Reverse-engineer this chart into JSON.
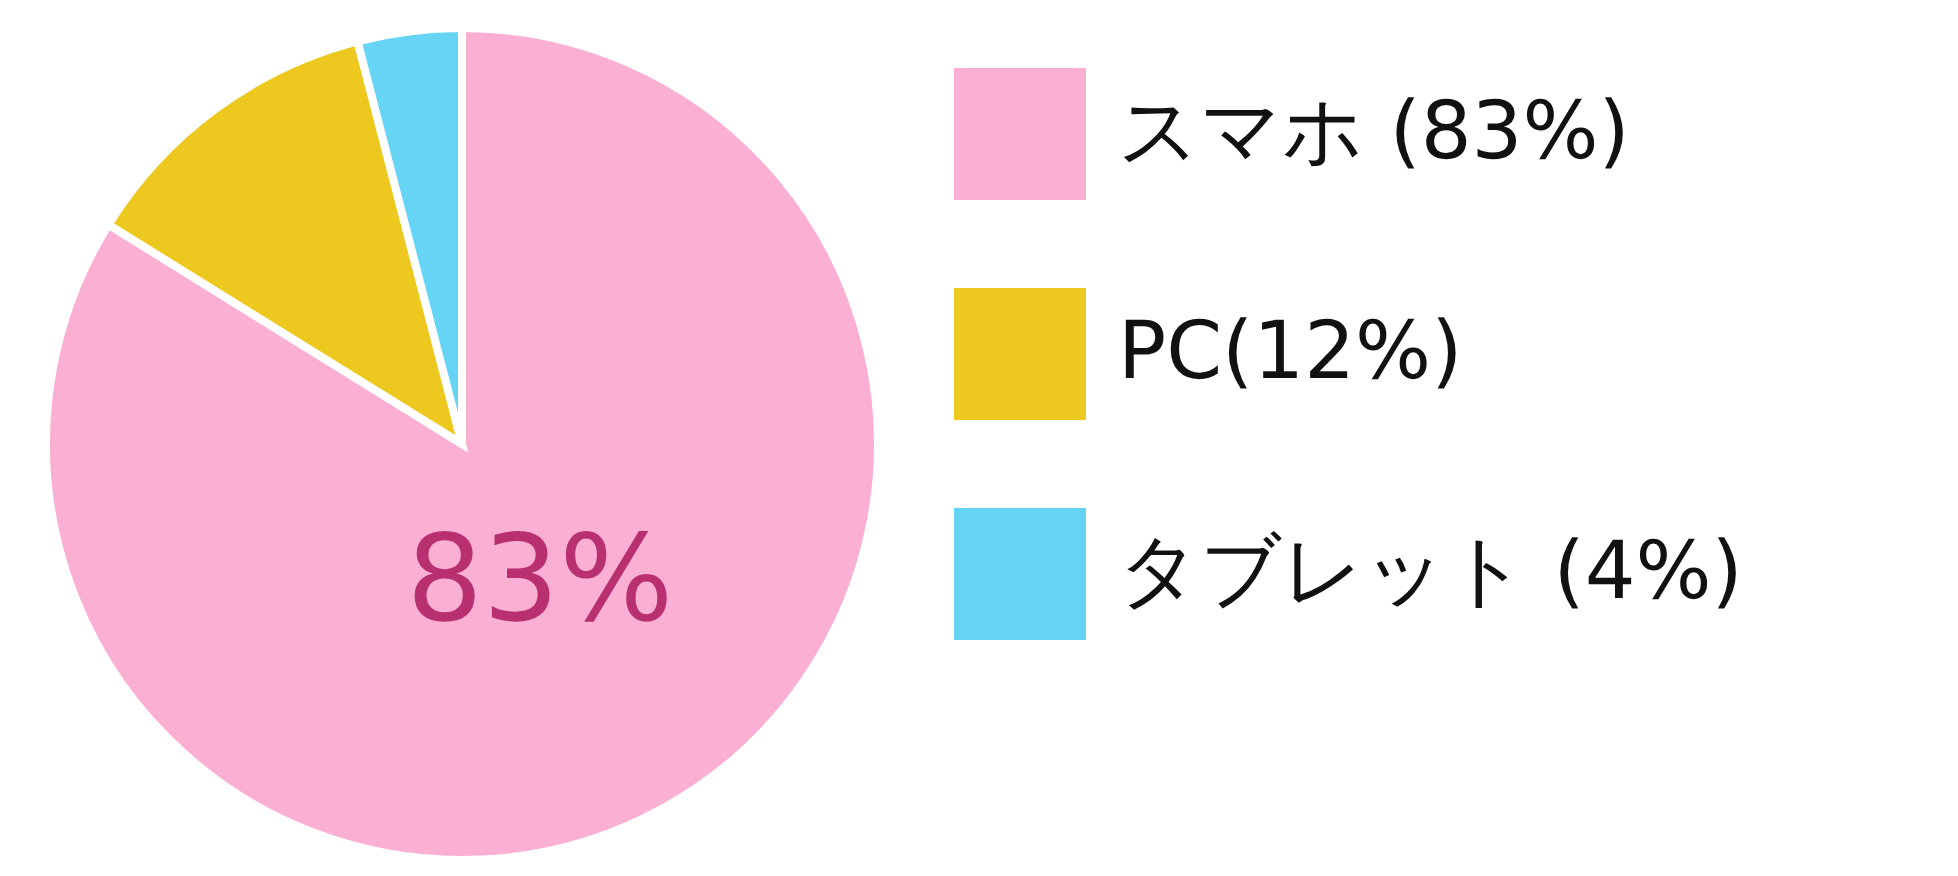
{
  "chart_data": {
    "type": "pie",
    "categories": [
      "スマホ (83%)",
      "PC(12%)",
      "タブレット (4%)"
    ],
    "values": [
      83,
      12,
      4
    ],
    "colors": [
      "#fbafd3",
      "#edc920",
      "#66d4f4"
    ],
    "value_labels": [
      "83%",
      null,
      null
    ],
    "legend": "right"
  }
}
